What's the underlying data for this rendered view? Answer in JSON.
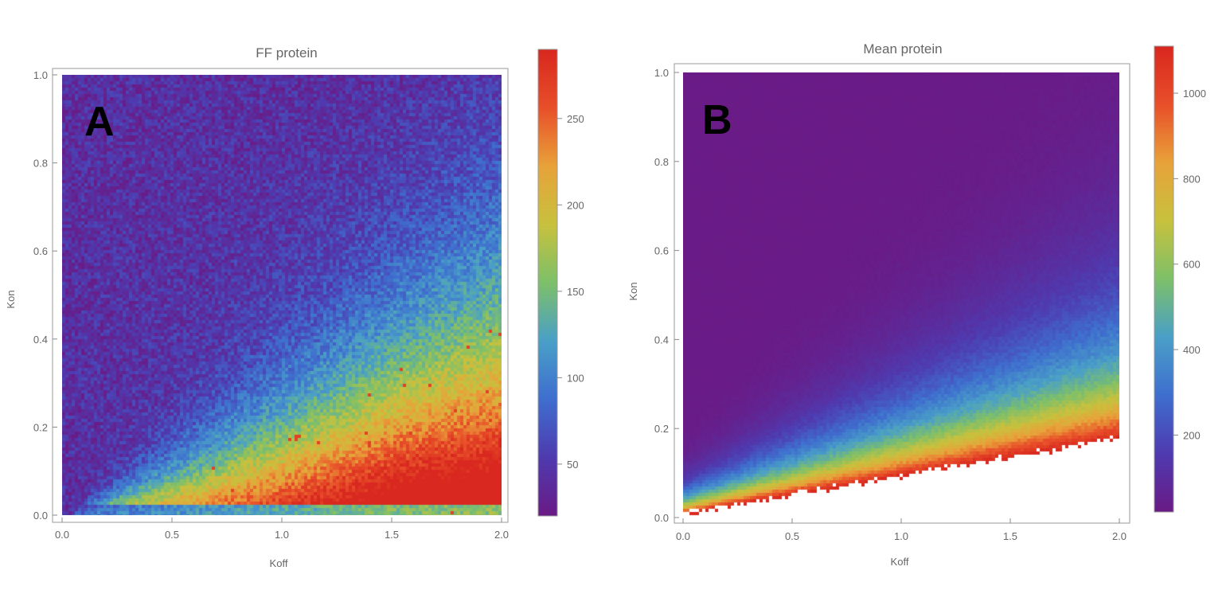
{
  "chart_data": [
    {
      "type": "heatmap",
      "panel_label": "A",
      "title": "FF protein",
      "xlabel": "Koff",
      "ylabel": "Kon",
      "xlim": [
        0,
        2.0
      ],
      "ylim": [
        0,
        1.0
      ],
      "x_ticks": [
        "0.0",
        "0.5",
        "1.0",
        "1.5",
        "2.0"
      ],
      "y_ticks": [
        "0.0",
        "0.2",
        "0.4",
        "0.6",
        "0.8",
        "1.0"
      ],
      "colorbar": {
        "min": 20,
        "max": 290,
        "ticks": [
          "50",
          "100",
          "150",
          "200",
          "250"
        ],
        "tick_values": [
          50,
          100,
          150,
          200,
          250
        ],
        "colormap": [
          "#6a1b86",
          "#4f3bb0",
          "#3f6fcf",
          "#4aa0c8",
          "#7ec06a",
          "#c8c23e",
          "#e8a33a",
          "#e8502a",
          "#d9281f"
        ]
      }
    },
    {
      "type": "heatmap",
      "panel_label": "B",
      "title": "Mean protein",
      "xlabel": "Koff",
      "ylabel": "Kon",
      "xlim": [
        0,
        2.0
      ],
      "ylim": [
        0,
        1.0
      ],
      "x_ticks": [
        "0.0",
        "0.5",
        "1.0",
        "1.5",
        "2.0"
      ],
      "y_ticks": [
        "0.0",
        "0.2",
        "0.4",
        "0.6",
        "0.8",
        "1.0"
      ],
      "colorbar": {
        "min": 20,
        "max": 1110,
        "ticks": [
          "200",
          "400",
          "600",
          "800",
          "1000"
        ],
        "tick_values": [
          200,
          400,
          600,
          800,
          1000
        ],
        "colormap": [
          "#6a1b86",
          "#4f3bb0",
          "#3f6fcf",
          "#4aa0c8",
          "#7ec06a",
          "#c8c23e",
          "#e8a33a",
          "#e8502a",
          "#d9281f"
        ]
      }
    }
  ]
}
